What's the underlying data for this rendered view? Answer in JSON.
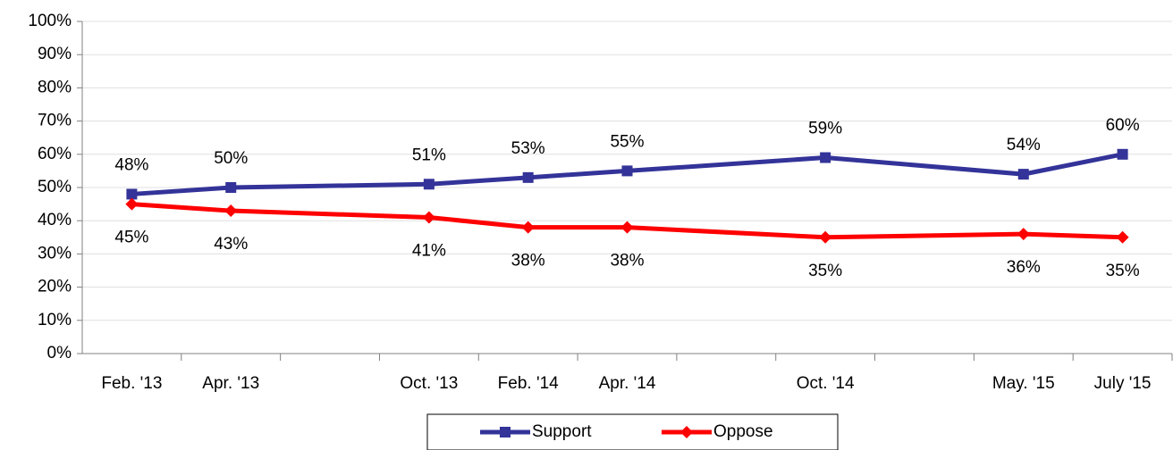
{
  "chart_data": {
    "type": "line",
    "categories": [
      "Feb. '13",
      "Apr. '13",
      null,
      "Oct. '13",
      "Feb. '14",
      "Apr. '14",
      null,
      "Oct. '14",
      null,
      "May. '15",
      "July '15"
    ],
    "series": [
      {
        "name": "Support",
        "color": "#333399",
        "marker": "square",
        "values": [
          48,
          50,
          null,
          51,
          53,
          55,
          null,
          59,
          null,
          54,
          60
        ],
        "value_labels": [
          "48%",
          "50%",
          null,
          "51%",
          "53%",
          "55%",
          null,
          "59%",
          null,
          "54%",
          "60%"
        ]
      },
      {
        "name": "Oppose",
        "color": "#ff0000",
        "marker": "diamond",
        "values": [
          45,
          43,
          null,
          41,
          38,
          38,
          null,
          35,
          null,
          36,
          35
        ],
        "value_labels": [
          "45%",
          "43%",
          null,
          "41%",
          "38%",
          "38%",
          null,
          "35%",
          null,
          "36%",
          "35%"
        ]
      }
    ],
    "ylim": [
      0,
      100
    ],
    "yticks": [
      {
        "value": 0,
        "label": "0%"
      },
      {
        "value": 10,
        "label": "10%"
      },
      {
        "value": 20,
        "label": "20%"
      },
      {
        "value": 30,
        "label": "30%"
      },
      {
        "value": 40,
        "label": "40%"
      },
      {
        "value": 50,
        "label": "50%"
      },
      {
        "value": 60,
        "label": "60%"
      },
      {
        "value": 70,
        "label": "70%"
      },
      {
        "value": 80,
        "label": "80%"
      },
      {
        "value": 90,
        "label": "90%"
      },
      {
        "value": 100,
        "label": "100%"
      }
    ],
    "grid": true,
    "legend": "bottom"
  }
}
